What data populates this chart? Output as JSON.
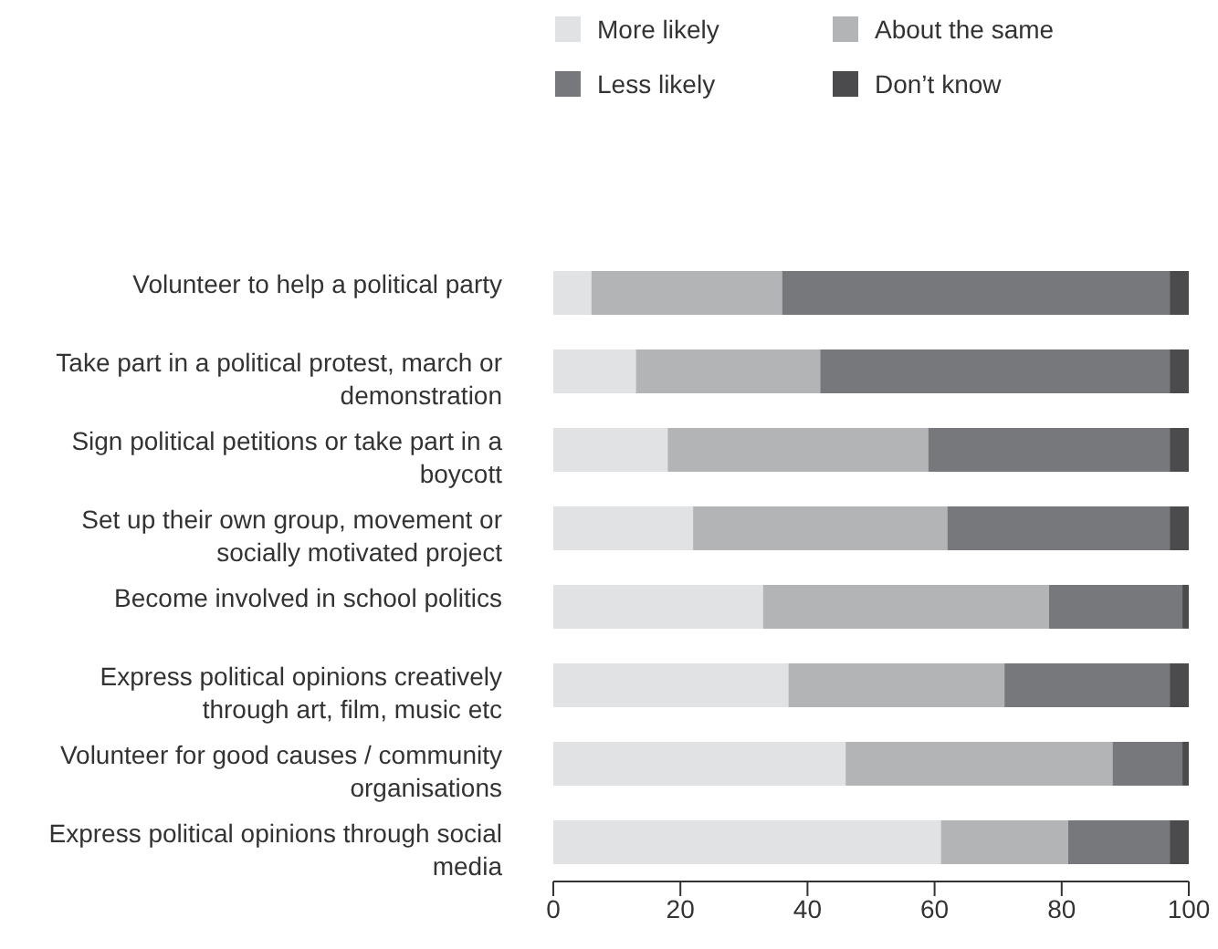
{
  "chart_data": {
    "type": "bar",
    "orientation": "horizontal",
    "stacked": true,
    "legend": "top",
    "grid": false,
    "categories": [
      "Volunteer to help a political party",
      "Take part in a political protest, march or demonstration",
      "Sign political petitions or take part in a boycott",
      "Set up their own group, movement or socially motivated project",
      "Become involved in school politics",
      "Express political opinions creatively through art, film, music etc",
      "Volunteer for good causes / community organisations",
      "Express political opinions through social media"
    ],
    "series": [
      {
        "name": "More likely",
        "color": "#e1e2e4",
        "values": [
          6,
          13,
          18,
          22,
          33,
          37,
          46,
          61
        ]
      },
      {
        "name": "About the same",
        "color": "#b3b4b6",
        "values": [
          30,
          29,
          41,
          40,
          45,
          34,
          42,
          20
        ]
      },
      {
        "name": "Less likely",
        "color": "#77787c",
        "values": [
          61,
          55,
          38,
          35,
          21,
          26,
          11,
          16
        ]
      },
      {
        "name": "Don’t know",
        "color": "#4b4b4d",
        "values": [
          3,
          3,
          3,
          3,
          1,
          3,
          1,
          3
        ]
      }
    ],
    "xlim": [
      0,
      100
    ],
    "xticks": [
      0,
      20,
      40,
      60,
      80,
      100
    ]
  }
}
